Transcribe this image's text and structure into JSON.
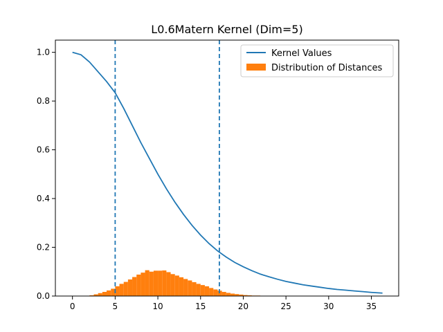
{
  "chart_data": {
    "type": "line",
    "title": "L0.6Matern Kernel (Dim=5)",
    "xlabel": "",
    "ylabel": "",
    "xlim": [
      -2.0,
      38.2
    ],
    "ylim": [
      0.0,
      1.05
    ],
    "xticks": [
      0,
      5,
      10,
      15,
      20,
      25,
      30,
      35
    ],
    "yticks": [
      0.0,
      0.2,
      0.4,
      0.6,
      0.8,
      1.0
    ],
    "grid": false,
    "legend_position": "top-right",
    "colors": {
      "kernel": "#1f77b4",
      "histogram": "#ff7f0e",
      "vlines": "#1f77b4"
    },
    "series": [
      {
        "name": "Kernel Values",
        "kind": "line",
        "x": [
          0,
          1,
          2,
          3,
          4,
          5,
          6,
          7,
          8,
          9,
          10,
          11,
          12,
          13,
          14,
          15,
          16,
          17,
          18,
          19,
          20,
          21,
          22,
          23,
          24,
          25,
          26,
          27,
          28,
          29,
          30,
          31,
          32,
          33,
          34,
          35,
          36.3
        ],
        "y": [
          1.0,
          0.99,
          0.96,
          0.92,
          0.88,
          0.834,
          0.77,
          0.7,
          0.63,
          0.565,
          0.5,
          0.44,
          0.385,
          0.335,
          0.29,
          0.25,
          0.215,
          0.185,
          0.16,
          0.138,
          0.12,
          0.104,
          0.09,
          0.079,
          0.069,
          0.06,
          0.053,
          0.046,
          0.041,
          0.036,
          0.031,
          0.027,
          0.024,
          0.021,
          0.018,
          0.015,
          0.012
        ]
      },
      {
        "name": "Distribution of Distances",
        "kind": "histogram",
        "bin_width": 0.5,
        "bin_starts": [
          2.0,
          2.5,
          3.0,
          3.5,
          4.0,
          4.5,
          5.0,
          5.5,
          6.0,
          6.5,
          7.0,
          7.5,
          8.0,
          8.5,
          9.0,
          9.5,
          10.0,
          10.5,
          11.0,
          11.5,
          12.0,
          12.5,
          13.0,
          13.5,
          14.0,
          14.5,
          15.0,
          15.5,
          16.0,
          16.5,
          17.0,
          17.5,
          18.0,
          18.5,
          19.0,
          19.5,
          20.0,
          20.5,
          21.0,
          21.5,
          22.0,
          22.5
        ],
        "values": [
          0.003,
          0.007,
          0.012,
          0.017,
          0.023,
          0.03,
          0.04,
          0.05,
          0.058,
          0.068,
          0.078,
          0.088,
          0.096,
          0.106,
          0.1,
          0.104,
          0.104,
          0.105,
          0.098,
          0.09,
          0.084,
          0.077,
          0.07,
          0.064,
          0.057,
          0.05,
          0.045,
          0.04,
          0.033,
          0.027,
          0.022,
          0.017,
          0.013,
          0.01,
          0.008,
          0.006,
          0.004,
          0.003,
          0.002,
          0.002,
          0.001,
          0.001
        ]
      }
    ],
    "vlines": [
      5.0,
      17.2
    ]
  }
}
